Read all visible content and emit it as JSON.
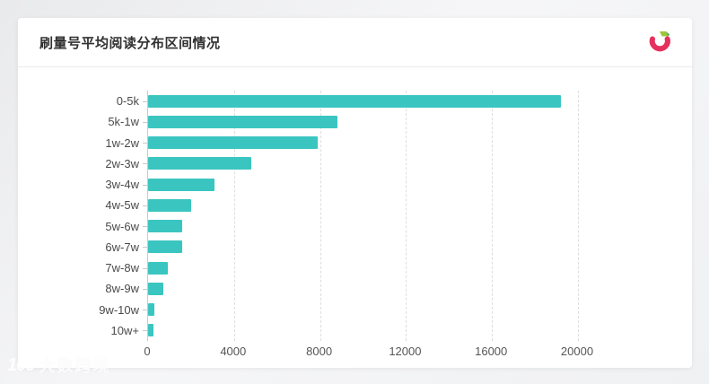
{
  "page": {
    "background_base": "#f1f2f4"
  },
  "card": {
    "title": "刷量号平均阅读分布区间情况"
  },
  "logo": {
    "pink": "#e5315d",
    "green": "#9fc63b",
    "dark_green": "#44a147"
  },
  "watermark": {
    "logo_text": "100",
    "text": "大数跨境"
  },
  "chart_data": {
    "type": "bar",
    "orientation": "horizontal",
    "title": "刷量号平均阅读分布区间情况",
    "categories": [
      "0-5k",
      "5k-1w",
      "1w-2w",
      "2w-3w",
      "3w-4w",
      "4w-5w",
      "5w-6w",
      "6w-7w",
      "7w-8w",
      "8w-9w",
      "9w-10w",
      "10w+"
    ],
    "values": [
      19200,
      8800,
      7900,
      4800,
      3100,
      2000,
      1600,
      1600,
      900,
      700,
      300,
      250
    ],
    "xlabel": "",
    "ylabel": "",
    "xlim": [
      0,
      20000
    ],
    "x_ticks": [
      0,
      4000,
      8000,
      12000,
      16000,
      20000
    ],
    "bar_color": "#3bc5c1",
    "grid": true,
    "gridline_style": "dashed",
    "legend": "none"
  }
}
